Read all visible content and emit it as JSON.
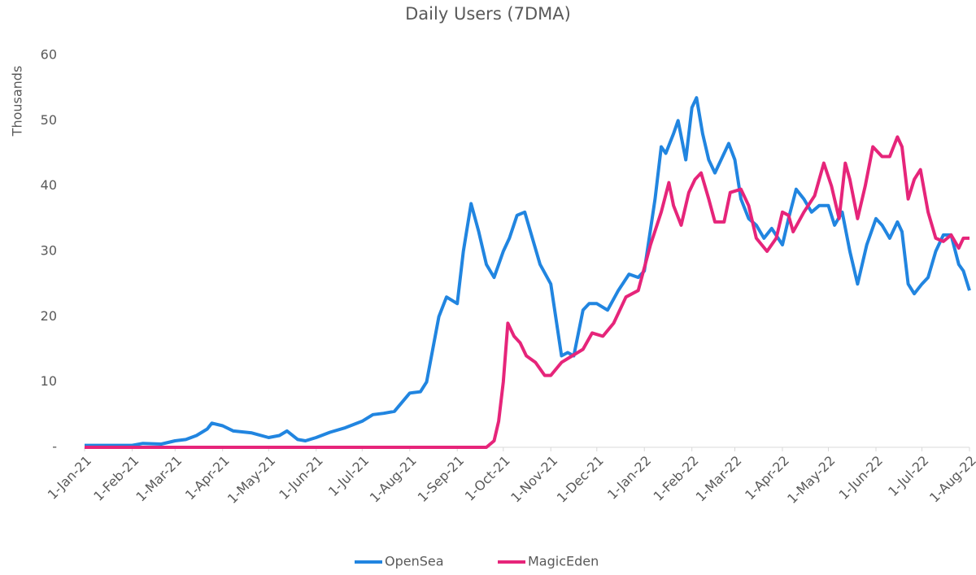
{
  "chart_data": {
    "type": "line",
    "title": "Daily Users (7DMA)",
    "ylabel": "Thousands",
    "ylim": [
      0,
      60
    ],
    "yticks": [
      {
        "value": 0,
        "label": "-"
      },
      10,
      20,
      30,
      40,
      50,
      60
    ],
    "xlim": [
      "2021-01-01",
      "2022-08-01"
    ],
    "xticks": [
      {
        "value": "2021-01-01",
        "label": "1-Jan-21"
      },
      {
        "value": "2021-02-01",
        "label": "1-Feb-21"
      },
      {
        "value": "2021-03-01",
        "label": "1-Mar-21"
      },
      {
        "value": "2021-04-01",
        "label": "1-Apr-21"
      },
      {
        "value": "2021-05-01",
        "label": "1-May-21"
      },
      {
        "value": "2021-06-01",
        "label": "1-Jun-21"
      },
      {
        "value": "2021-07-01",
        "label": "1-Jul-21"
      },
      {
        "value": "2021-08-01",
        "label": "1-Aug-21"
      },
      {
        "value": "2021-09-01",
        "label": "1-Sep-21"
      },
      {
        "value": "2021-10-01",
        "label": "1-Oct-21"
      },
      {
        "value": "2021-11-01",
        "label": "1-Nov-21"
      },
      {
        "value": "2021-12-01",
        "label": "1-Dec-21"
      },
      {
        "value": "2022-01-01",
        "label": "1-Jan-22"
      },
      {
        "value": "2022-02-01",
        "label": "1-Feb-22"
      },
      {
        "value": "2022-03-01",
        "label": "1-Mar-22"
      },
      {
        "value": "2022-04-01",
        "label": "1-Apr-22"
      },
      {
        "value": "2022-05-01",
        "label": "1-May-22"
      },
      {
        "value": "2022-06-01",
        "label": "1-Jun-22"
      },
      {
        "value": "2022-07-01",
        "label": "1-Jul-22"
      },
      {
        "value": "2022-08-01",
        "label": "1-Aug-22"
      }
    ],
    "legend": "bottom",
    "series": [
      {
        "name": "OpenSea",
        "color": "#2185e0",
        "x": [
          "2021-01-01",
          "2021-01-15",
          "2021-02-01",
          "2021-02-08",
          "2021-02-20",
          "2021-03-01",
          "2021-03-08",
          "2021-03-15",
          "2021-03-22",
          "2021-03-25",
          "2021-04-01",
          "2021-04-08",
          "2021-04-20",
          "2021-05-01",
          "2021-05-08",
          "2021-05-13",
          "2021-05-20",
          "2021-05-25",
          "2021-06-01",
          "2021-06-10",
          "2021-06-20",
          "2021-07-01",
          "2021-07-08",
          "2021-07-15",
          "2021-07-22",
          "2021-08-01",
          "2021-08-08",
          "2021-08-12",
          "2021-08-20",
          "2021-08-25",
          "2021-09-01",
          "2021-09-05",
          "2021-09-10",
          "2021-09-15",
          "2021-09-20",
          "2021-09-25",
          "2021-10-01",
          "2021-10-05",
          "2021-10-10",
          "2021-10-15",
          "2021-10-20",
          "2021-10-25",
          "2021-11-01",
          "2021-11-08",
          "2021-11-12",
          "2021-11-16",
          "2021-11-22",
          "2021-11-26",
          "2021-12-01",
          "2021-12-08",
          "2021-12-15",
          "2021-12-22",
          "2021-12-28",
          "2022-01-01",
          "2022-01-08",
          "2022-01-12",
          "2022-01-15",
          "2022-01-20",
          "2022-01-23",
          "2022-01-28",
          "2022-02-01",
          "2022-02-04",
          "2022-02-08",
          "2022-02-12",
          "2022-02-16",
          "2022-02-22",
          "2022-02-25",
          "2022-03-01",
          "2022-03-05",
          "2022-03-10",
          "2022-03-15",
          "2022-03-20",
          "2022-03-25",
          "2022-04-01",
          "2022-04-05",
          "2022-04-10",
          "2022-04-15",
          "2022-04-20",
          "2022-04-25",
          "2022-05-01",
          "2022-05-05",
          "2022-05-10",
          "2022-05-15",
          "2022-05-20",
          "2022-05-26",
          "2022-06-01",
          "2022-06-05",
          "2022-06-10",
          "2022-06-15",
          "2022-06-18",
          "2022-06-22",
          "2022-06-26",
          "2022-07-01",
          "2022-07-05",
          "2022-07-10",
          "2022-07-15",
          "2022-07-20",
          "2022-07-25",
          "2022-07-28",
          "2022-08-01"
        ],
        "values": [
          0.3,
          0.3,
          0.3,
          0.6,
          0.5,
          1.0,
          1.2,
          1.8,
          2.8,
          3.7,
          3.3,
          2.5,
          2.2,
          1.5,
          1.8,
          2.5,
          1.2,
          1.0,
          1.5,
          2.3,
          3.0,
          4.0,
          5.0,
          5.2,
          5.5,
          8.3,
          8.5,
          10,
          20,
          23,
          22,
          30,
          37.3,
          33,
          28,
          26,
          30,
          32,
          35.5,
          36,
          32,
          28,
          25,
          14,
          14.5,
          14,
          21,
          22,
          22,
          21,
          24,
          26.5,
          26,
          27,
          38,
          46,
          45,
          48,
          50,
          44,
          52,
          53.5,
          48,
          44,
          42,
          45,
          46.5,
          44,
          38,
          35,
          34,
          32,
          33.5,
          31,
          35,
          39.5,
          38,
          36,
          37,
          37,
          34,
          36,
          30,
          25,
          31,
          35,
          34,
          32,
          34.5,
          33,
          25,
          23.5,
          25,
          26,
          30,
          32.5,
          32.5,
          28,
          27,
          24
        ]
      },
      {
        "name": "MagicEden",
        "color": "#e6257a",
        "x": [
          "2021-01-01",
          "2021-09-20",
          "2021-09-25",
          "2021-09-28",
          "2021-10-01",
          "2021-10-04",
          "2021-10-08",
          "2021-10-12",
          "2021-10-16",
          "2021-10-22",
          "2021-10-28",
          "2021-11-01",
          "2021-11-08",
          "2021-11-15",
          "2021-11-22",
          "2021-11-28",
          "2021-12-05",
          "2021-12-12",
          "2021-12-20",
          "2021-12-28",
          "2022-01-05",
          "2022-01-12",
          "2022-01-17",
          "2022-01-20",
          "2022-01-25",
          "2022-01-30",
          "2022-02-03",
          "2022-02-07",
          "2022-02-12",
          "2022-02-16",
          "2022-02-22",
          "2022-02-26",
          "2022-03-05",
          "2022-03-10",
          "2022-03-15",
          "2022-03-22",
          "2022-03-28",
          "2022-04-01",
          "2022-04-05",
          "2022-04-08",
          "2022-04-15",
          "2022-04-22",
          "2022-04-28",
          "2022-05-03",
          "2022-05-08",
          "2022-05-12",
          "2022-05-15",
          "2022-05-20",
          "2022-05-25",
          "2022-05-30",
          "2022-06-05",
          "2022-06-10",
          "2022-06-15",
          "2022-06-18",
          "2022-06-22",
          "2022-06-26",
          "2022-06-30",
          "2022-07-05",
          "2022-07-10",
          "2022-07-15",
          "2022-07-20",
          "2022-07-25",
          "2022-07-28",
          "2022-08-01"
        ],
        "values": [
          0,
          0,
          1,
          4,
          10,
          19,
          17,
          16,
          14,
          13,
          11,
          11,
          13,
          14,
          15,
          17.5,
          17,
          19,
          23,
          24,
          31,
          36,
          40.5,
          37,
          34,
          39,
          41,
          42,
          38,
          34.5,
          34.5,
          39,
          39.5,
          37,
          32,
          30,
          32,
          36,
          35.5,
          33,
          36,
          38.5,
          43.5,
          40,
          35,
          43.5,
          41,
          35,
          40,
          46,
          44.5,
          44.5,
          47.5,
          46,
          38,
          41,
          42.5,
          36,
          32,
          31.5,
          32.5,
          30.5,
          32,
          32
        ]
      }
    ]
  }
}
